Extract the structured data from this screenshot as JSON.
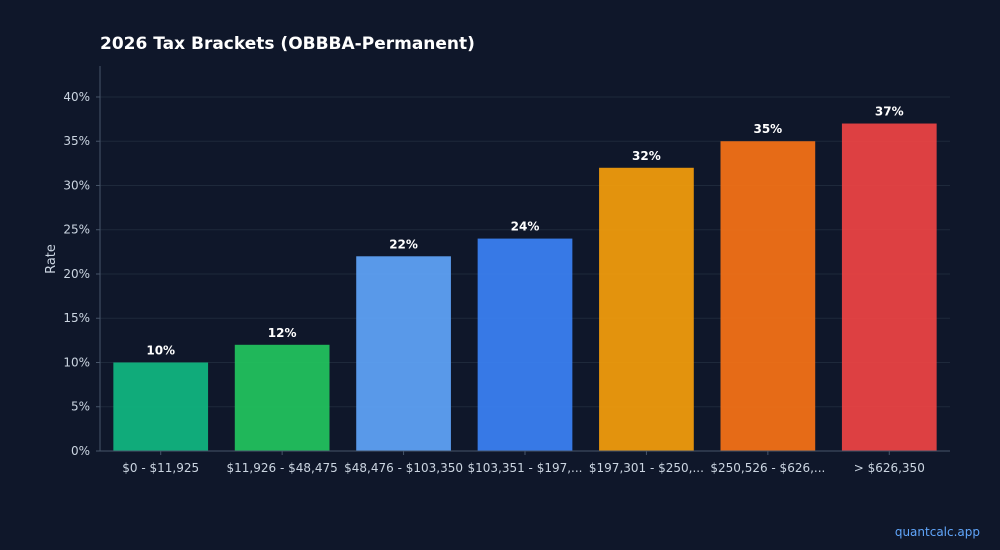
{
  "chart_data": {
    "type": "bar",
    "title": "2026 Tax Brackets (OBBBA-Permanent)",
    "xlabel": "",
    "ylabel": "Rate",
    "ylim": [
      0,
      0.435
    ],
    "yticks": [
      0,
      0.05,
      0.1,
      0.15,
      0.2,
      0.25,
      0.3,
      0.35,
      0.4
    ],
    "ytick_labels": [
      "0%",
      "5%",
      "10%",
      "15%",
      "20%",
      "25%",
      "30%",
      "35%",
      "40%"
    ],
    "grid": true,
    "categories": [
      "$0 - $11,925",
      "$11,926 - $48,475",
      "$48,476 - $103,350",
      "$103,351 - $197,...",
      "$197,301 - $250,...",
      "$250,526 - $626,...",
      "> $626,350"
    ],
    "values": [
      0.1,
      0.12,
      0.22,
      0.24,
      0.32,
      0.35,
      0.37
    ],
    "data_labels": [
      "10%",
      "12%",
      "22%",
      "24%",
      "32%",
      "35%",
      "37%"
    ],
    "colors": [
      "#10b981",
      "#22c55e",
      "#60a5fa",
      "#3b82f6",
      "#f59e0b",
      "#f97316",
      "#ef4444"
    ]
  },
  "watermark": "quantcalc.app"
}
